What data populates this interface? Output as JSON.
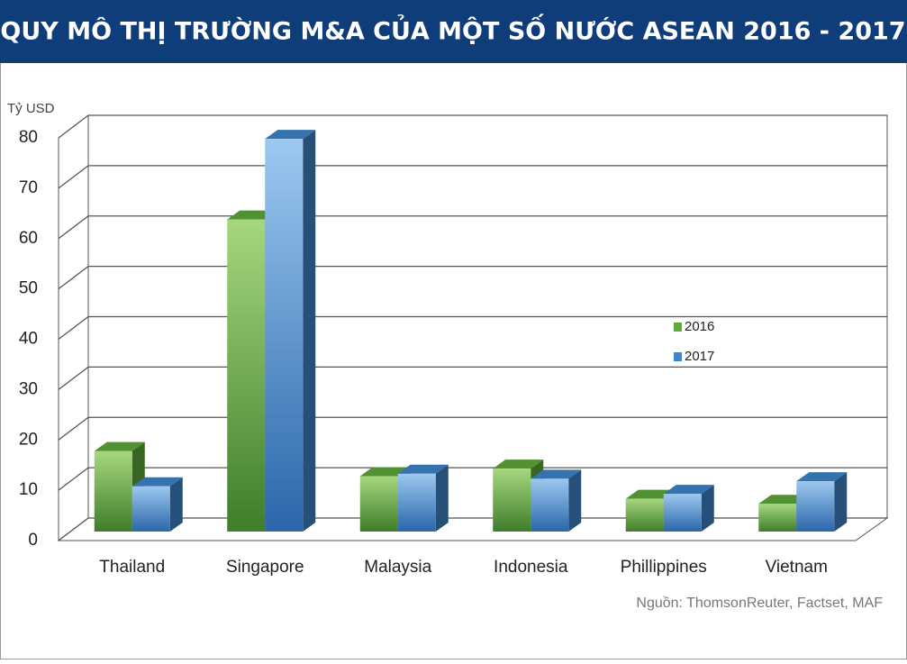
{
  "chart_data": {
    "type": "bar3d",
    "title": "QUY MÔ THỊ TRƯỜNG M&A CỦA MỘT SỐ NƯỚC ASEAN 2016 - 2017",
    "y_label": "Tỷ USD",
    "source": "Nguồn: ThomsonReuter, Factset, MAF",
    "categories": [
      "Thailand",
      "Singapore",
      "Malaysia",
      "Indonesia",
      "Phillippines",
      "Vietnam"
    ],
    "series": [
      {
        "name": "2016",
        "color": "#5faa3a",
        "values": [
          16,
          62,
          11,
          12.5,
          6.5,
          5.5
        ]
      },
      {
        "name": "2017",
        "color": "#3f86cc",
        "values": [
          9,
          78,
          11.5,
          10.5,
          7.5,
          10
        ]
      }
    ],
    "ylim": [
      0,
      80
    ],
    "yticks": [
      0,
      10,
      20,
      30,
      40,
      50,
      60,
      70,
      80
    ],
    "grid": true
  }
}
